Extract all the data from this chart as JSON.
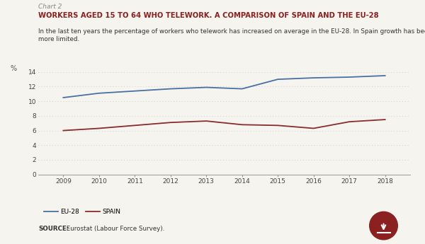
{
  "chart_label": "Chart 2",
  "title": "WORKERS AGED 15 TO 64 WHO TELEWORK. A COMPARISON OF SPAIN AND THE EU-28",
  "subtitle": "In the last ten years the percentage of workers who telework has increased on average in the EU-28. In Spain growth has been much\nmore limited.",
  "years": [
    2009,
    2010,
    2011,
    2012,
    2013,
    2014,
    2015,
    2016,
    2017,
    2018
  ],
  "eu28": [
    10.5,
    11.1,
    11.4,
    11.7,
    11.9,
    11.7,
    13.0,
    13.2,
    13.3,
    13.5
  ],
  "spain": [
    6.0,
    6.3,
    6.7,
    7.1,
    7.3,
    6.8,
    6.7,
    6.3,
    7.2,
    7.5
  ],
  "eu28_color": "#4a6fa5",
  "spain_color": "#8b2b2b",
  "background_color": "#f5f4ef",
  "grid_color": "#cccccc",
  "ylabel": "%",
  "ylim": [
    0,
    14
  ],
  "yticks": [
    0,
    2,
    4,
    6,
    8,
    10,
    12,
    14
  ],
  "source_bold": "SOURCE:",
  "source_text": " Eurostat (Labour Force Survey).",
  "legend_eu28": "EU-28",
  "legend_spain": "SPAIN",
  "title_color": "#8b2020",
  "chart_label_color": "#888888",
  "subtitle_color": "#333333",
  "icon_color": "#8b2020"
}
